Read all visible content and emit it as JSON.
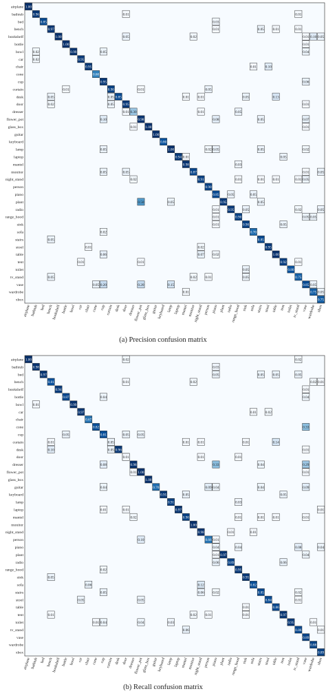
{
  "chart_data": [
    {
      "type": "heatmap",
      "caption": "(a) Precision confusion matrix",
      "categories": [
        "airplane",
        "bathtub",
        "bed",
        "bench",
        "bookshelf",
        "bottle",
        "bowl",
        "car",
        "chair",
        "cone",
        "cup",
        "curtain",
        "desk",
        "door",
        "dresser",
        "flower_pot",
        "glass_box",
        "guitar",
        "keyboard",
        "lamp",
        "laptop",
        "mantel",
        "monitor",
        "night_stand",
        "person",
        "piano",
        "plant",
        "radio",
        "range_hood",
        "sink",
        "sofa",
        "stairs",
        "stool",
        "table",
        "tent",
        "toilet",
        "tv_stand",
        "vase",
        "wardrobe",
        "xbox"
      ],
      "diagonal": [
        1.0,
        0.96,
        0.85,
        0.97,
        1.0,
        1.0,
        0.99,
        0.95,
        0.95,
        0.6,
        0.95,
        0.9,
        0.85,
        0.95,
        0.3,
        0.98,
        1.0,
        1.0,
        0.8,
        1.0,
        0.94,
        0.98,
        0.87,
        0.91,
        0.9,
        0.85,
        0.95,
        0.95,
        0.9,
        0.9,
        0.7,
        0.85,
        0.95,
        1.0,
        0.92,
        0.8,
        0.75,
        0.85,
        0.75,
        0.75
      ],
      "off_diagonal": [
        [
          1,
          13,
          0.01
        ],
        [
          1,
          36,
          0.01
        ],
        [
          2,
          25,
          0.03
        ],
        [
          3,
          25,
          0.01
        ],
        [
          3,
          31,
          0.05
        ],
        [
          3,
          33,
          0.01
        ],
        [
          3,
          36,
          0.01
        ],
        [
          4,
          13,
          0.05
        ],
        [
          4,
          22,
          0.02
        ],
        [
          4,
          37,
          0.01
        ],
        [
          4,
          38,
          0.1
        ],
        [
          4,
          39,
          0.05
        ],
        [
          5,
          37,
          0.01
        ],
        [
          6,
          1,
          0.02
        ],
        [
          6,
          10,
          0.05
        ],
        [
          6,
          37,
          0.04
        ],
        [
          7,
          1,
          0.02
        ],
        [
          8,
          30,
          0.01
        ],
        [
          8,
          32,
          0.1
        ],
        [
          10,
          37,
          0.06
        ],
        [
          11,
          5,
          0.01
        ],
        [
          11,
          15,
          0.01
        ],
        [
          11,
          24,
          0.05
        ],
        [
          12,
          3,
          0.05
        ],
        [
          12,
          11,
          0.05
        ],
        [
          12,
          21,
          0.01
        ],
        [
          12,
          23,
          0.01
        ],
        [
          12,
          29,
          0.05
        ],
        [
          12,
          33,
          0.13
        ],
        [
          13,
          3,
          0.02
        ],
        [
          13,
          11,
          0.05
        ],
        [
          13,
          37,
          0.01
        ],
        [
          14,
          13,
          0.01
        ],
        [
          14,
          23,
          0.01
        ],
        [
          14,
          28,
          0.05
        ],
        [
          15,
          10,
          0.1
        ],
        [
          15,
          25,
          0.08
        ],
        [
          15,
          31,
          0.05
        ],
        [
          15,
          37,
          0.07
        ],
        [
          16,
          14,
          0.01
        ],
        [
          16,
          37,
          0.01
        ],
        [
          19,
          10,
          0.05
        ],
        [
          19,
          24,
          0.02
        ],
        [
          19,
          25,
          0.05
        ],
        [
          19,
          31,
          0.05
        ],
        [
          19,
          37,
          0.02
        ],
        [
          20,
          21,
          0.01
        ],
        [
          20,
          34,
          0.05
        ],
        [
          21,
          28,
          0.03
        ],
        [
          22,
          10,
          0.05
        ],
        [
          22,
          13,
          0.05
        ],
        [
          22,
          37,
          0.01
        ],
        [
          22,
          39,
          0.05
        ],
        [
          23,
          14,
          0.02
        ],
        [
          23,
          28,
          0.01
        ],
        [
          23,
          31,
          0.01
        ],
        [
          23,
          33,
          0.01
        ],
        [
          23,
          36,
          0.01
        ],
        [
          23,
          37,
          0.05
        ],
        [
          25,
          27,
          0.05
        ],
        [
          25,
          30,
          0.05
        ],
        [
          26,
          15,
          0.5
        ],
        [
          26,
          19,
          0.05
        ],
        [
          26,
          31,
          0.05
        ],
        [
          27,
          25,
          0.01
        ],
        [
          27,
          29,
          0.05
        ],
        [
          27,
          36,
          0.02
        ],
        [
          27,
          39,
          0.05
        ],
        [
          28,
          25,
          0.01
        ],
        [
          28,
          37,
          0.05
        ],
        [
          28,
          38,
          0.05
        ],
        [
          29,
          25,
          0.01
        ],
        [
          29,
          34,
          0.05
        ],
        [
          30,
          10,
          0.02
        ],
        [
          31,
          3,
          0.05
        ],
        [
          32,
          8,
          0.01
        ],
        [
          32,
          23,
          0.02
        ],
        [
          33,
          10,
          0.06
        ],
        [
          33,
          23,
          0.07
        ],
        [
          33,
          25,
          0.02
        ],
        [
          34,
          7,
          0.01
        ],
        [
          34,
          15,
          0.01
        ],
        [
          34,
          36,
          0.01
        ],
        [
          35,
          29,
          0.05
        ],
        [
          36,
          3,
          0.05
        ],
        [
          36,
          22,
          0.02
        ],
        [
          36,
          24,
          0.01
        ],
        [
          36,
          29,
          0.05
        ],
        [
          37,
          9,
          0.05
        ],
        [
          37,
          10,
          0.2
        ],
        [
          37,
          15,
          0.2
        ],
        [
          37,
          19,
          0.15
        ],
        [
          37,
          38,
          0.05
        ],
        [
          38,
          21,
          0.01
        ],
        [
          38,
          39,
          0.05
        ]
      ]
    },
    {
      "type": "heatmap",
      "caption": "(b) Recall confusion matrix",
      "categories": [
        "airplane",
        "bathtub",
        "bed",
        "bench",
        "bookshelf",
        "bottle",
        "bowl",
        "car",
        "chair",
        "cone",
        "cup",
        "curtain",
        "desk",
        "door",
        "dresser",
        "flower_pot",
        "glass_box",
        "guitar",
        "keyboard",
        "lamp",
        "laptop",
        "mantel",
        "monitor",
        "night_stand",
        "person",
        "piano",
        "plant",
        "radio",
        "range_hood",
        "sink",
        "sofa",
        "stairs",
        "stool",
        "table",
        "tent",
        "toilet",
        "tv_stand",
        "vase",
        "wardrobe",
        "xbox"
      ],
      "diagonal": [
        1.0,
        0.98,
        0.97,
        0.81,
        0.94,
        0.87,
        0.99,
        0.97,
        0.67,
        0.82,
        0.81,
        0.81,
        0.96,
        0.25,
        0.98,
        1.0,
        1.0,
        0.7,
        0.95,
        0.91,
        0.97,
        0.9,
        1.0,
        0.98,
        0.66,
        0.72,
        0.97,
        0.89,
        0.95,
        0.95,
        0.82,
        0.85,
        0.84,
        0.86,
        0.97,
        0.95,
        0.86,
        0.89,
        0.88,
        0.89
      ],
      "off_diagonal": [
        [
          0,
          13,
          0.02
        ],
        [
          0,
          36,
          0.02
        ],
        [
          1,
          25,
          0.03
        ],
        [
          2,
          25,
          0.05
        ],
        [
          2,
          31,
          0.05
        ],
        [
          2,
          33,
          0.05
        ],
        [
          2,
          36,
          0.05
        ],
        [
          3,
          13,
          0.01
        ],
        [
          3,
          22,
          0.02
        ],
        [
          3,
          38,
          0.02
        ],
        [
          3,
          39,
          0.01
        ],
        [
          4,
          37,
          0.01
        ],
        [
          5,
          10,
          0.04
        ],
        [
          5,
          37,
          0.04
        ],
        [
          6,
          1,
          0.01
        ],
        [
          7,
          30,
          0.01
        ],
        [
          7,
          32,
          0.02
        ],
        [
          9,
          37,
          0.33
        ],
        [
          10,
          5,
          0.05
        ],
        [
          10,
          13,
          0.05
        ],
        [
          10,
          15,
          0.05
        ],
        [
          11,
          3,
          0.01
        ],
        [
          11,
          11,
          0.05
        ],
        [
          11,
          21,
          0.01
        ],
        [
          11,
          23,
          0.01
        ],
        [
          11,
          29,
          0.01
        ],
        [
          11,
          33,
          0.14
        ],
        [
          12,
          3,
          0.1
        ],
        [
          12,
          11,
          0.05
        ],
        [
          12,
          37,
          0.01
        ],
        [
          13,
          13,
          0.01
        ],
        [
          13,
          23,
          0.01
        ],
        [
          13,
          28,
          0.01
        ],
        [
          14,
          10,
          0.08
        ],
        [
          14,
          25,
          0.33
        ],
        [
          14,
          31,
          0.04
        ],
        [
          14,
          37,
          0.29
        ],
        [
          15,
          14,
          0.01
        ],
        [
          15,
          37,
          0.01
        ],
        [
          17,
          10,
          0.04
        ],
        [
          17,
          24,
          0.09
        ],
        [
          17,
          25,
          0.04
        ],
        [
          17,
          31,
          0.04
        ],
        [
          17,
          37,
          0.09
        ],
        [
          18,
          21,
          0.05
        ],
        [
          18,
          34,
          0.05
        ],
        [
          19,
          28,
          0.03
        ],
        [
          20,
          10,
          0.01
        ],
        [
          20,
          13,
          0.01
        ],
        [
          20,
          39,
          0.01
        ],
        [
          21,
          14,
          0.02
        ],
        [
          21,
          28,
          0.01
        ],
        [
          21,
          31,
          0.01
        ],
        [
          21,
          33,
          0.01
        ],
        [
          21,
          37,
          0.01
        ],
        [
          23,
          27,
          0.01
        ],
        [
          23,
          30,
          0.01
        ],
        [
          24,
          15,
          0.1
        ],
        [
          24,
          25,
          0.01
        ],
        [
          25,
          25,
          0.04
        ],
        [
          25,
          28,
          0.04
        ],
        [
          25,
          36,
          0.08
        ],
        [
          25,
          39,
          0.04
        ],
        [
          26,
          25,
          0.01
        ],
        [
          26,
          37,
          0.04
        ],
        [
          27,
          25,
          0.06
        ],
        [
          27,
          34,
          0.06
        ],
        [
          28,
          10,
          0.02
        ],
        [
          29,
          3,
          0.05
        ],
        [
          30,
          8,
          0.06
        ],
        [
          30,
          23,
          0.12
        ],
        [
          31,
          10,
          0.05
        ],
        [
          31,
          23,
          0.06
        ],
        [
          31,
          25,
          0.02
        ],
        [
          31,
          36,
          0.02
        ],
        [
          32,
          7,
          0.05
        ],
        [
          32,
          15,
          0.05
        ],
        [
          32,
          36,
          0.01
        ],
        [
          33,
          29,
          0.01
        ],
        [
          34,
          3,
          0.01
        ],
        [
          34,
          22,
          0.02
        ],
        [
          34,
          24,
          0.01
        ],
        [
          34,
          29,
          0.01
        ],
        [
          35,
          9,
          0.01
        ],
        [
          35,
          10,
          0.04
        ],
        [
          35,
          15,
          0.04
        ],
        [
          35,
          19,
          0.03
        ],
        [
          35,
          38,
          0.01
        ],
        [
          36,
          21,
          0.06
        ],
        [
          36,
          39,
          0.01
        ]
      ]
    }
  ]
}
